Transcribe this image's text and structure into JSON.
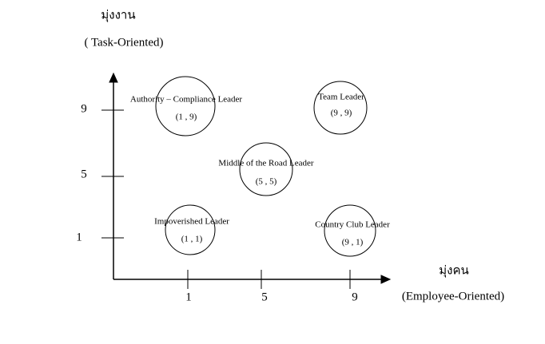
{
  "y_axis": {
    "title": "มุ่งงาน",
    "subtitle": "( Task-Oriented)",
    "ticks": [
      "9",
      "5",
      "1"
    ]
  },
  "x_axis": {
    "title": "มุ่งคน",
    "subtitle": "(Employee-Oriented)",
    "ticks": [
      "1",
      "5",
      "9"
    ]
  },
  "nodes": [
    {
      "label": "Authority – Compliance Leader",
      "coords": "(1 , 9)"
    },
    {
      "label": "Team Leader",
      "coords": "(9 , 9)"
    },
    {
      "label": "Middle of the Road Leader",
      "coords": "(5 , 5)"
    },
    {
      "label": "Impoverished Leader",
      "coords": "(1 , 1)"
    },
    {
      "label": "Country Club Leader",
      "coords": "(9 , 1)"
    }
  ]
}
